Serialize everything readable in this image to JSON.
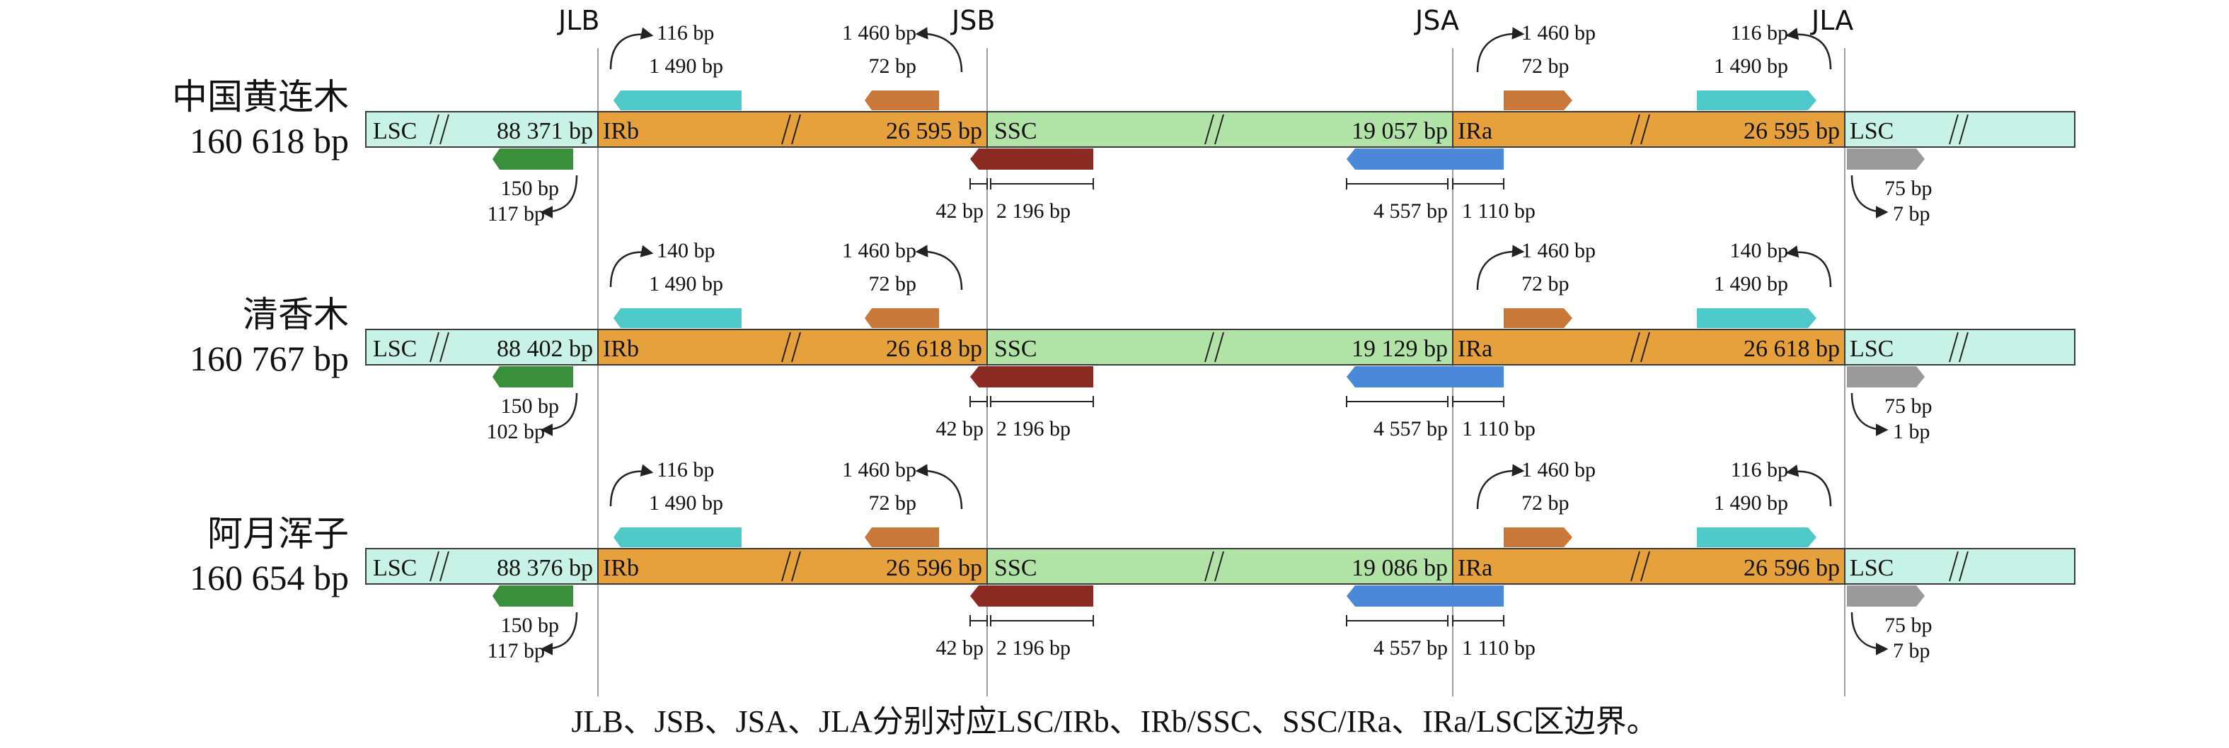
{
  "boundaries": [
    {
      "id": "jlb",
      "label": "JLB"
    },
    {
      "id": "jsb",
      "label": "JSB"
    },
    {
      "id": "jsa",
      "label": "JSA"
    },
    {
      "id": "jla",
      "label": "JLA"
    }
  ],
  "colors": {
    "lsc": "#c8f2e6",
    "ir": "#e6a03c",
    "ssc": "#b2e3a6",
    "border": "#3a3a3a",
    "gene_teal": "#4fc8c8",
    "gene_orange": "#c87838",
    "gene_green": "#3a8f3a",
    "gene_darkred": "#8a2a22",
    "gene_blue": "#4a88d8",
    "gene_gray": "#9a9a9a",
    "line": "#a0a0a0"
  },
  "species": [
    {
      "name": "中国黄连木",
      "total": "160 618 bp",
      "segments": {
        "lsc": "LSC",
        "lsc_len": "88 371 bp",
        "irb": "IRb",
        "irb_len": "26 595 bp",
        "ssc": "SSC",
        "ssc_len": "19 057 bp",
        "ira": "IRa",
        "ira_len": "26 595 bp",
        "lsc2": "LSC"
      },
      "top": {
        "jlb_a": "116 bp",
        "jlb_b": "1 490 bp",
        "jsb_a": "1 460 bp",
        "jsb_b": "72 bp",
        "jsa_a": "1 460 bp",
        "jsa_b": "72 bp",
        "jla_a": "116 bp",
        "jla_b": "1 490 bp"
      },
      "bottom": {
        "jlb_a": "150 bp",
        "jlb_b": "117 bp",
        "jsb_a": "42 bp",
        "jsb_b": "2 196 bp",
        "jsa_a": "4 557 bp",
        "jsa_b": "1 110 bp",
        "jla_a": "75 bp",
        "jla_b": "7 bp"
      }
    },
    {
      "name": "清香木",
      "total": "160 767 bp",
      "segments": {
        "lsc": "LSC",
        "lsc_len": "88 402 bp",
        "irb": "IRb",
        "irb_len": "26 618 bp",
        "ssc": "SSC",
        "ssc_len": "19 129 bp",
        "ira": "IRa",
        "ira_len": "26 618 bp",
        "lsc2": "LSC"
      },
      "top": {
        "jlb_a": "140 bp",
        "jlb_b": "1 490 bp",
        "jsb_a": "1 460 bp",
        "jsb_b": "72 bp",
        "jsa_a": "1 460 bp",
        "jsa_b": "72 bp",
        "jla_a": "140 bp",
        "jla_b": "1 490 bp"
      },
      "bottom": {
        "jlb_a": "150 bp",
        "jlb_b": "102 bp",
        "jsb_a": "42 bp",
        "jsb_b": "2 196 bp",
        "jsa_a": "4 557 bp",
        "jsa_b": "1 110 bp",
        "jla_a": "75 bp",
        "jla_b": "1 bp"
      }
    },
    {
      "name": "阿月浑子",
      "total": "160 654 bp",
      "segments": {
        "lsc": "LSC",
        "lsc_len": "88 376 bp",
        "irb": "IRb",
        "irb_len": "26 596 bp",
        "ssc": "SSC",
        "ssc_len": "19 086 bp",
        "ira": "IRa",
        "ira_len": "26 596 bp",
        "lsc2": "LSC"
      },
      "top": {
        "jlb_a": "116 bp",
        "jlb_b": "1 490 bp",
        "jsb_a": "1 460 bp",
        "jsb_b": "72 bp",
        "jsa_a": "1 460 bp",
        "jsa_b": "72 bp",
        "jla_a": "116 bp",
        "jla_b": "1 490 bp"
      },
      "bottom": {
        "jlb_a": "150 bp",
        "jlb_b": "117 bp",
        "jsb_a": "42 bp",
        "jsb_b": "2 196 bp",
        "jsa_a": "4 557 bp",
        "jsa_b": "1 110 bp",
        "jla_a": "75 bp",
        "jla_b": "7 bp"
      }
    }
  ],
  "caption": "JLB、JSB、JSA、JLA分别对应LSC/IRb、IRb/SSC、SSC/IRa、IRa/LSC区边界。"
}
